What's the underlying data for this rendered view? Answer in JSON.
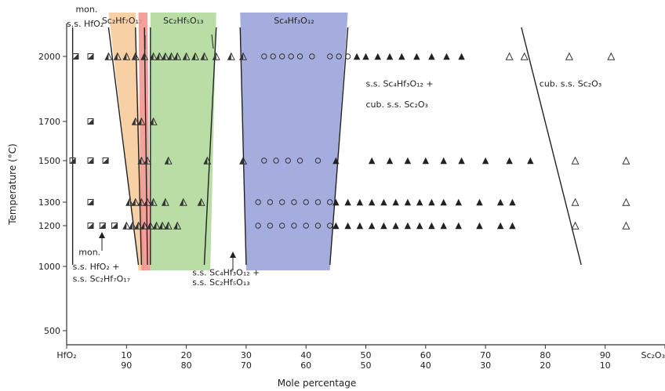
{
  "chart_data": {
    "type": "scatter",
    "title": "",
    "xlabel": "Mole percentage",
    "ylabel": "Temperature (°C)",
    "xlim": [
      0,
      100
    ],
    "x_ticks": [
      {
        "x": 0,
        "top": "HfO₂",
        "bottom": ""
      },
      {
        "x": 10,
        "top": "10",
        "bottom": "90"
      },
      {
        "x": 20,
        "top": "20",
        "bottom": "80"
      },
      {
        "x": 30,
        "top": "30",
        "bottom": "70"
      },
      {
        "x": 40,
        "top": "40",
        "bottom": "60"
      },
      {
        "x": 50,
        "top": "50",
        "bottom": "50"
      },
      {
        "x": 60,
        "top": "60",
        "bottom": "40"
      },
      {
        "x": 70,
        "top": "70",
        "bottom": "30"
      },
      {
        "x": 80,
        "top": "80",
        "bottom": "20"
      },
      {
        "x": 90,
        "top": "90",
        "bottom": "10"
      },
      {
        "x": 100,
        "top": "Sc₂O₃",
        "bottom": ""
      }
    ],
    "y_ticks": [
      {
        "t": 500,
        "label": "500"
      },
      {
        "t": 1000,
        "label": "1000"
      },
      {
        "t": 1200,
        "label": "1200"
      },
      {
        "t": 1300,
        "label": "1300"
      },
      {
        "t": 1500,
        "label": "1500"
      },
      {
        "t": 1700,
        "label": "1700"
      },
      {
        "t": 2000,
        "label": "2000"
      }
    ],
    "phase_fields": [
      {
        "name": "Sc₂Hf₇O₁₇",
        "color": "#f6c48e",
        "top": [
          7,
          11.5
        ],
        "bottom": [
          12,
          13
        ]
      },
      {
        "name": "",
        "color": "#f08a82",
        "top": [
          12,
          13.5
        ],
        "bottom": [
          12.5,
          14
        ]
      },
      {
        "name": "Sc₂Hf₅O₁₃",
        "color": "#a6d68f",
        "top": [
          14,
          25
        ],
        "bottom": [
          14,
          24
        ]
      },
      {
        "name": "Sc₄Hf₃O₁₂",
        "color": "#8f98d6",
        "top": [
          29,
          47
        ],
        "bottom": [
          30,
          44
        ]
      }
    ],
    "boundary_lines": [
      {
        "x_top": 1,
        "x_bottom": 1
      },
      {
        "x_top": 7,
        "x_bottom": 12
      },
      {
        "x_top": 11.5,
        "x_bottom": 12.5
      },
      {
        "x_top": 13,
        "x_bottom": 13.5
      },
      {
        "x_top": 14,
        "x_bottom": 14
      },
      {
        "x_top": 25,
        "x_bottom": 23
      },
      {
        "x_top": 29,
        "x_bottom": 30
      },
      {
        "x_top": 47,
        "x_bottom": 44
      },
      {
        "x_top": 76,
        "x_bottom": 86
      }
    ],
    "annotations": [
      {
        "text": "mon.",
        "x": 1.5,
        "t": 2210
      },
      {
        "text": "s.s. HfO₂",
        "x": 0,
        "t": 2140
      },
      {
        "text": "s.s. Sc₄Hf₃O₁₂ +",
        "x": 50,
        "t": 1860
      },
      {
        "text": "cub. s.s. Sc₂O₃",
        "x": 50,
        "t": 1765
      },
      {
        "text": "cub. s.s. Sc₂O₃",
        "x": 79,
        "t": 1860
      },
      {
        "text": "mon.",
        "x": 2,
        "t": 1055
      },
      {
        "text": "s.s. HfO₂ +",
        "x": 1,
        "t": 975
      },
      {
        "text": "s.s. Sc₂Hf₇O₁₇",
        "x": 1,
        "t": 880
      },
      {
        "text": "s.s. Sc₄Hf₃O₁₂ +",
        "x": 21,
        "t": 930
      },
      {
        "text": "s.s. Sc₂Hf₅O₁₃",
        "x": 21,
        "t": 855
      }
    ],
    "series": [
      {
        "marker": "half-square",
        "points": [
          {
            "x": 1.5,
            "t": 2000
          },
          {
            "x": 4,
            "t": 2000
          },
          {
            "x": 4,
            "t": 1700
          },
          {
            "x": 1,
            "t": 1500
          },
          {
            "x": 4,
            "t": 1500
          },
          {
            "x": 6.5,
            "t": 1500
          },
          {
            "x": 4,
            "t": 1300
          },
          {
            "x": 4,
            "t": 1200
          },
          {
            "x": 6,
            "t": 1200
          },
          {
            "x": 8,
            "t": 1200
          }
        ]
      },
      {
        "marker": "half-triangle",
        "points": [
          {
            "x": 7,
            "t": 2000
          },
          {
            "x": 8.5,
            "t": 2000
          },
          {
            "x": 10,
            "t": 2000
          },
          {
            "x": 11.5,
            "t": 2000
          },
          {
            "x": 13,
            "t": 2000
          },
          {
            "x": 14.5,
            "t": 2000
          },
          {
            "x": 15.5,
            "t": 2000
          },
          {
            "x": 16.5,
            "t": 2000
          },
          {
            "x": 17.5,
            "t": 2000
          },
          {
            "x": 18.5,
            "t": 2000
          },
          {
            "x": 20,
            "t": 2000
          },
          {
            "x": 21.5,
            "t": 2000
          },
          {
            "x": 23,
            "t": 2000
          },
          {
            "x": 25,
            "t": 2000
          },
          {
            "x": 27.5,
            "t": 2000
          },
          {
            "x": 29.5,
            "t": 2000
          },
          {
            "x": 11.5,
            "t": 1700
          },
          {
            "x": 12.5,
            "t": 1700
          },
          {
            "x": 14.5,
            "t": 1700
          },
          {
            "x": 12.5,
            "t": 1500
          },
          {
            "x": 13.5,
            "t": 1500
          },
          {
            "x": 17,
            "t": 1500
          },
          {
            "x": 23.5,
            "t": 1500
          },
          {
            "x": 29.5,
            "t": 1500
          },
          {
            "x": 10.5,
            "t": 1300
          },
          {
            "x": 11.5,
            "t": 1300
          },
          {
            "x": 12.5,
            "t": 1300
          },
          {
            "x": 13.5,
            "t": 1300
          },
          {
            "x": 14.5,
            "t": 1300
          },
          {
            "x": 16.5,
            "t": 1300
          },
          {
            "x": 19.5,
            "t": 1300
          },
          {
            "x": 22.5,
            "t": 1300
          },
          {
            "x": 10,
            "t": 1200
          },
          {
            "x": 11,
            "t": 1200
          },
          {
            "x": 12,
            "t": 1200
          },
          {
            "x": 13,
            "t": 1200
          },
          {
            "x": 14,
            "t": 1200
          },
          {
            "x": 15,
            "t": 1200
          },
          {
            "x": 16,
            "t": 1200
          },
          {
            "x": 17,
            "t": 1200
          },
          {
            "x": 18.5,
            "t": 1200
          }
        ]
      },
      {
        "marker": "open-circle",
        "points": [
          {
            "x": 33,
            "t": 2000
          },
          {
            "x": 34.5,
            "t": 2000
          },
          {
            "x": 36,
            "t": 2000
          },
          {
            "x": 37.5,
            "t": 2000
          },
          {
            "x": 39,
            "t": 2000
          },
          {
            "x": 41,
            "t": 2000
          },
          {
            "x": 44,
            "t": 2000
          },
          {
            "x": 45.5,
            "t": 2000
          },
          {
            "x": 47,
            "t": 2000
          },
          {
            "x": 33,
            "t": 1500
          },
          {
            "x": 35,
            "t": 1500
          },
          {
            "x": 37,
            "t": 1500
          },
          {
            "x": 39,
            "t": 1500
          },
          {
            "x": 42,
            "t": 1500
          },
          {
            "x": 32,
            "t": 1300
          },
          {
            "x": 34,
            "t": 1300
          },
          {
            "x": 36,
            "t": 1300
          },
          {
            "x": 38,
            "t": 1300
          },
          {
            "x": 40,
            "t": 1300
          },
          {
            "x": 42,
            "t": 1300
          },
          {
            "x": 44,
            "t": 1300
          },
          {
            "x": 32,
            "t": 1200
          },
          {
            "x": 34,
            "t": 1200
          },
          {
            "x": 36,
            "t": 1200
          },
          {
            "x": 38,
            "t": 1200
          },
          {
            "x": 40,
            "t": 1200
          },
          {
            "x": 42,
            "t": 1200
          },
          {
            "x": 44,
            "t": 1200
          }
        ]
      },
      {
        "marker": "filled-triangle",
        "points": [
          {
            "x": 48.5,
            "t": 2000
          },
          {
            "x": 50,
            "t": 2000
          },
          {
            "x": 52,
            "t": 2000
          },
          {
            "x": 54,
            "t": 2000
          },
          {
            "x": 56,
            "t": 2000
          },
          {
            "x": 58.5,
            "t": 2000
          },
          {
            "x": 61,
            "t": 2000
          },
          {
            "x": 63.5,
            "t": 2000
          },
          {
            "x": 66,
            "t": 2000
          },
          {
            "x": 45,
            "t": 1500
          },
          {
            "x": 51,
            "t": 1500
          },
          {
            "x": 54,
            "t": 1500
          },
          {
            "x": 57,
            "t": 1500
          },
          {
            "x": 60,
            "t": 1500
          },
          {
            "x": 63,
            "t": 1500
          },
          {
            "x": 66,
            "t": 1500
          },
          {
            "x": 70,
            "t": 1500
          },
          {
            "x": 74,
            "t": 1500
          },
          {
            "x": 77.5,
            "t": 1500
          },
          {
            "x": 45,
            "t": 1300
          },
          {
            "x": 47,
            "t": 1300
          },
          {
            "x": 49,
            "t": 1300
          },
          {
            "x": 51,
            "t": 1300
          },
          {
            "x": 53,
            "t": 1300
          },
          {
            "x": 55,
            "t": 1300
          },
          {
            "x": 57,
            "t": 1300
          },
          {
            "x": 59,
            "t": 1300
          },
          {
            "x": 61,
            "t": 1300
          },
          {
            "x": 63,
            "t": 1300
          },
          {
            "x": 65.5,
            "t": 1300
          },
          {
            "x": 69,
            "t": 1300
          },
          {
            "x": 72.5,
            "t": 1300
          },
          {
            "x": 74.5,
            "t": 1300
          },
          {
            "x": 45,
            "t": 1200
          },
          {
            "x": 47,
            "t": 1200
          },
          {
            "x": 49,
            "t": 1200
          },
          {
            "x": 51,
            "t": 1200
          },
          {
            "x": 53,
            "t": 1200
          },
          {
            "x": 55,
            "t": 1200
          },
          {
            "x": 57,
            "t": 1200
          },
          {
            "x": 59,
            "t": 1200
          },
          {
            "x": 61,
            "t": 1200
          },
          {
            "x": 63,
            "t": 1200
          },
          {
            "x": 65.5,
            "t": 1200
          },
          {
            "x": 69,
            "t": 1200
          },
          {
            "x": 72.5,
            "t": 1200
          },
          {
            "x": 74.5,
            "t": 1200
          }
        ]
      },
      {
        "marker": "open-triangle",
        "points": [
          {
            "x": 74,
            "t": 2000
          },
          {
            "x": 76.5,
            "t": 2000
          },
          {
            "x": 84,
            "t": 2000
          },
          {
            "x": 91,
            "t": 2000
          },
          {
            "x": 85,
            "t": 1500
          },
          {
            "x": 93.5,
            "t": 1500
          },
          {
            "x": 85,
            "t": 1300
          },
          {
            "x": 93.5,
            "t": 1300
          },
          {
            "x": 85,
            "t": 1200
          },
          {
            "x": 93.5,
            "t": 1200
          }
        ]
      }
    ],
    "grid": false,
    "legend": "none"
  }
}
